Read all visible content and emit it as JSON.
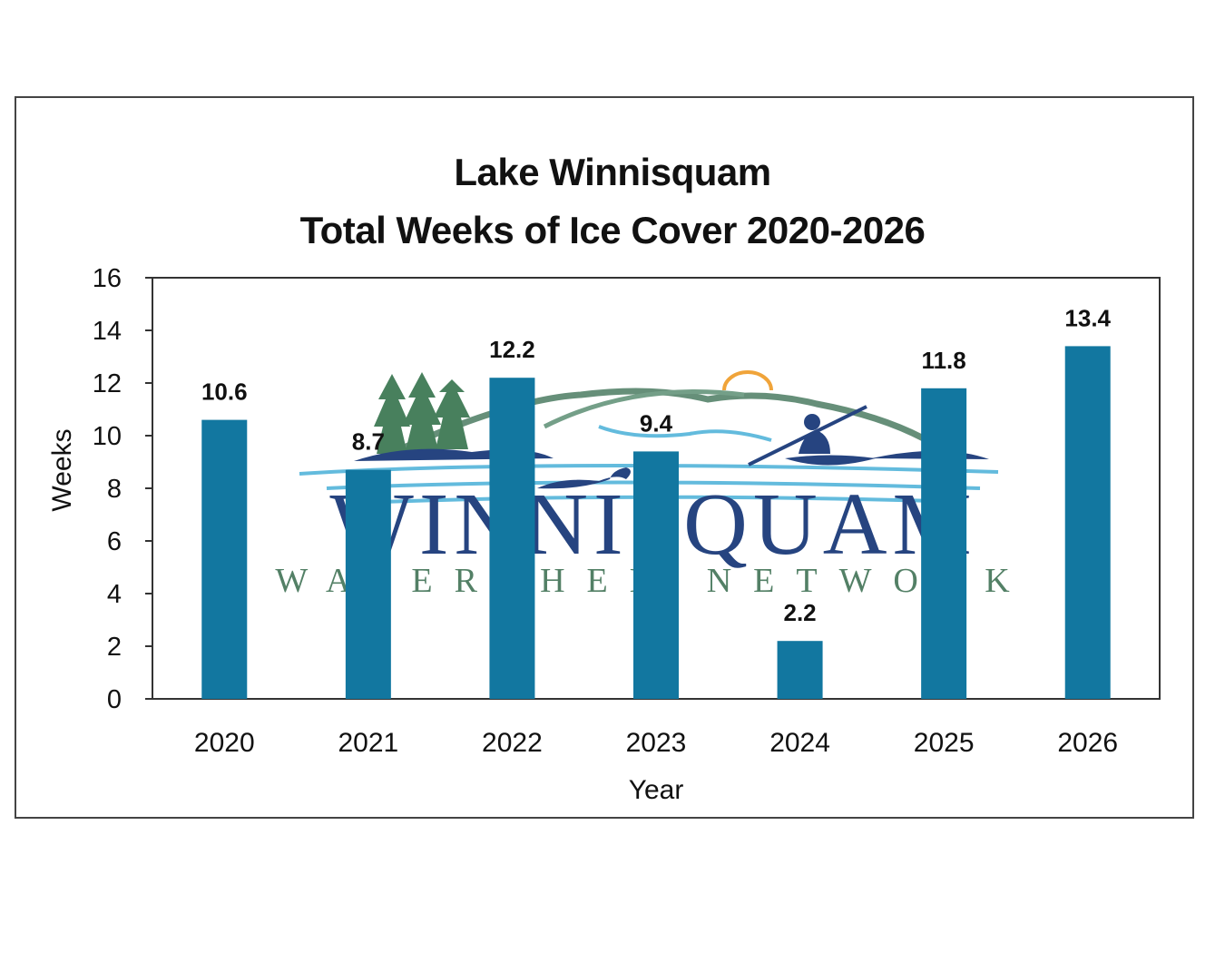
{
  "chart_data": {
    "type": "bar",
    "title": "Lake Winnisquam",
    "subtitle": "Total Weeks of Ice Cover 2020-2026",
    "xlabel": "Year",
    "ylabel": "Weeks",
    "categories": [
      "2020",
      "2021",
      "2022",
      "2023",
      "2024",
      "2025",
      "2026"
    ],
    "values": [
      10.6,
      8.7,
      12.2,
      9.4,
      2.2,
      11.8,
      13.4
    ],
    "data_labels": [
      "10.6",
      "8.7",
      "12.2",
      "9.4",
      "2.2",
      "11.8",
      "13.4"
    ],
    "ylim": [
      0,
      16
    ],
    "yticks": [
      0,
      2,
      4,
      6,
      8,
      10,
      12,
      14,
      16
    ],
    "grid": false,
    "legend": "none",
    "bar_color": "#1277a0"
  },
  "watermark": {
    "line1": "WINNISQUAM",
    "line2": "WATERSHED NETWORK",
    "navy": "#1b3b7a",
    "green": "#4a7a5e",
    "water": "#5bb8dc",
    "sun": "#f0a030"
  }
}
